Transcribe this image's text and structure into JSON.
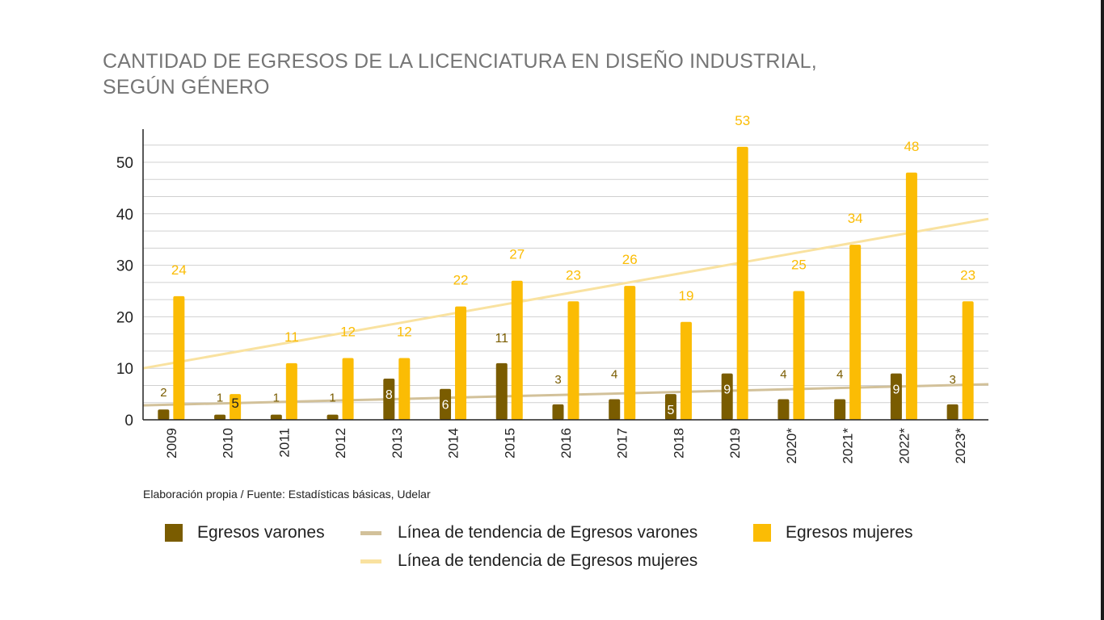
{
  "title_line1": "CANTIDAD DE EGRESOS DE LA LICENCIATURA EN DISEÑO INDUSTRIAL,",
  "title_line2": "SEGÚN GÉNERO",
  "source": "Elaboración propia / Fuente: Estadísticas básicas, Udelar",
  "legend": {
    "varones": "Egresos varones",
    "trend_varones": "Línea de tendencia de Egresos varones",
    "mujeres": "Egresos mujeres",
    "trend_mujeres": "Línea de tendencia de Egresos mujeres"
  },
  "colors": {
    "varones": "#7a5c00",
    "mujeres": "#fbbc04",
    "trend_varones": "#d2c19a",
    "trend_mujeres": "#f9e2a0",
    "grid": "#d0d0d0",
    "axis": "#222222"
  },
  "chart_data": {
    "type": "bar",
    "title": "CANTIDAD DE EGRESOS DE LA LICENCIATURA EN DISEÑO INDUSTRIAL, SEGÚN GÉNERO",
    "categories": [
      "2009",
      "2010",
      "2011",
      "2012",
      "2013",
      "2014",
      "2015",
      "2016",
      "2017",
      "2018",
      "2019",
      "2020*",
      "2021*",
      "2022*",
      "2023*"
    ],
    "series": [
      {
        "name": "Egresos varones",
        "values": [
          2,
          1,
          1,
          1,
          8,
          6,
          11,
          3,
          4,
          5,
          9,
          4,
          4,
          9,
          3
        ]
      },
      {
        "name": "Egresos mujeres",
        "values": [
          24,
          5,
          11,
          12,
          12,
          22,
          27,
          23,
          26,
          19,
          53,
          25,
          34,
          48,
          23
        ]
      }
    ],
    "trendlines": [
      {
        "name": "Línea de tendencia de Egresos varones",
        "start": 2.8,
        "end": 6.9
      },
      {
        "name": "Línea de tendencia de Egresos mujeres",
        "start": 10,
        "end": 39
      }
    ],
    "yticks": [
      0,
      10,
      20,
      30,
      40,
      50
    ],
    "ylim": [
      0,
      56
    ],
    "grid": true,
    "legend_position": "bottom"
  }
}
